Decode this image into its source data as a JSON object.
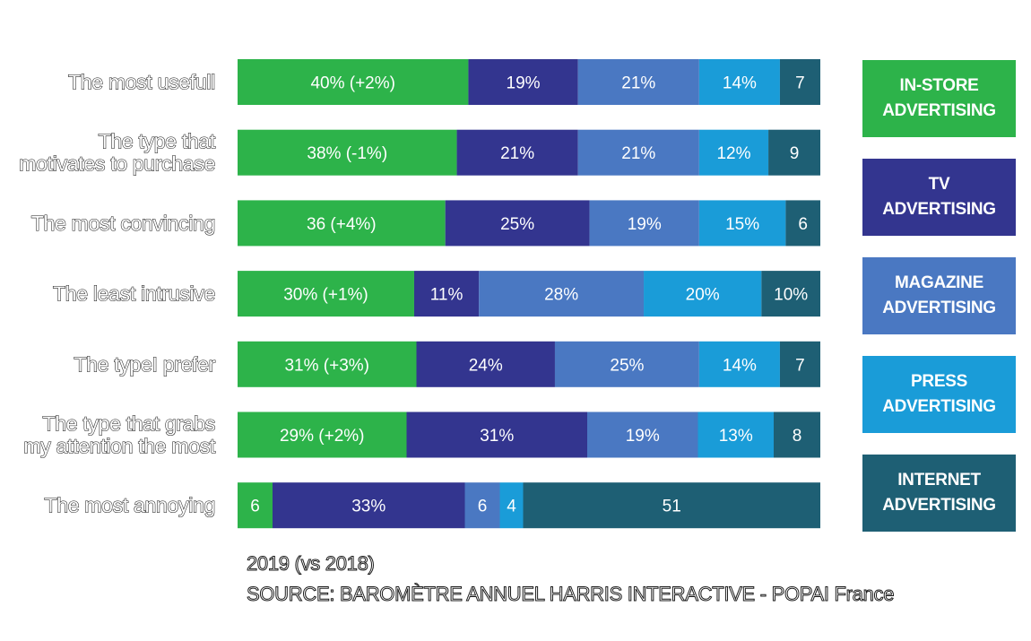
{
  "chart_data": {
    "type": "bar",
    "orientation": "horizontal",
    "stacked": true,
    "categories": [
      [
        "The most usefull"
      ],
      [
        "The type that",
        "motivates to purchase"
      ],
      [
        "The most convincing"
      ],
      [
        "The least intrusive"
      ],
      [
        "The typeI prefer"
      ],
      [
        "The type that grabs",
        "my attention the most"
      ],
      [
        "The most annoying"
      ]
    ],
    "series": [
      {
        "name": "IN-STORE ADVERTISING",
        "color": "#2db34a",
        "values": [
          40,
          38,
          36,
          30,
          31,
          29,
          6
        ],
        "labels": [
          "40% (+2%)",
          "38% (-1%)",
          "36 (+4%)",
          "30% (+1%)",
          "31% (+3%)",
          "29% (+2%)",
          "6"
        ]
      },
      {
        "name": "TV ADVERTISING",
        "color": "#33358f",
        "values": [
          19,
          21,
          25,
          11,
          24,
          31,
          33
        ],
        "labels": [
          "19%",
          "21%",
          "25%",
          "11%",
          "24%",
          "31%",
          "33%"
        ]
      },
      {
        "name": "MAGAZINE ADVERTISING",
        "color": "#4a78c2",
        "values": [
          21,
          21,
          19,
          28,
          25,
          19,
          6
        ],
        "labels": [
          "21%",
          "21%",
          "19%",
          "28%",
          "25%",
          "19%",
          "6"
        ]
      },
      {
        "name": "PRESS ADVERTISING",
        "color": "#1a9cd8",
        "values": [
          14,
          12,
          15,
          20,
          14,
          13,
          4
        ],
        "labels": [
          "14%",
          "12%",
          "15%",
          "20%",
          "14%",
          "13%",
          "4"
        ]
      },
      {
        "name": "INTERNET ADVERTISING",
        "color": "#1e5f74",
        "values": [
          7,
          9,
          6,
          10,
          7,
          8,
          51
        ],
        "labels": [
          "7",
          "9",
          "6",
          "10%",
          "7",
          "8",
          "51"
        ]
      }
    ],
    "legend_position": "right",
    "grid": false
  },
  "legend": [
    {
      "line1": "IN-STORE",
      "line2": "ADVERTISING",
      "color": "#2db34a"
    },
    {
      "line1": "TV",
      "line2": "ADVERTISING",
      "color": "#33358f"
    },
    {
      "line1": "MAGAZINE",
      "line2": "ADVERTISING",
      "color": "#4a78c2"
    },
    {
      "line1": "PRESS",
      "line2": "ADVERTISING",
      "color": "#1a9cd8"
    },
    {
      "line1": "INTERNET",
      "line2": "ADVERTISING",
      "color": "#1e5f74"
    }
  ],
  "footnote": {
    "year": "2019 (vs 2018)",
    "source": "SOURCE: BAROMÈTRE ANNUEL HARRIS INTERACTIVE - POPAI France"
  }
}
